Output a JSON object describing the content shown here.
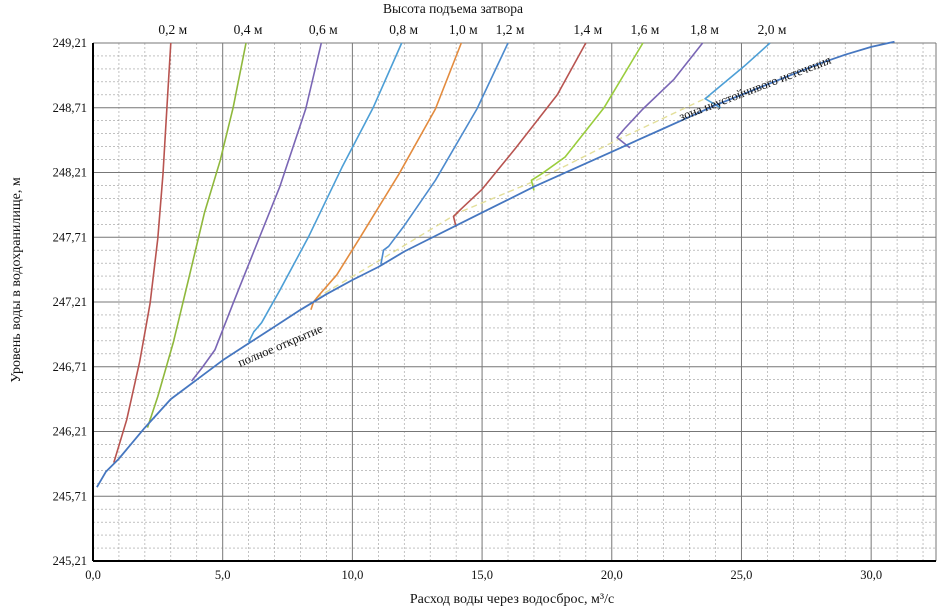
{
  "chart_data": {
    "type": "line",
    "title": "Высота подъема затвора",
    "xlabel": "Расход воды через водосброс, м³/с",
    "ylabel": "Уровень воды в водохранилище, м",
    "xlim": [
      0,
      32.5
    ],
    "ylim": [
      245.21,
      249.21
    ],
    "x_ticks": [
      0,
      5,
      10,
      15,
      20,
      25,
      30
    ],
    "x_tick_labels": [
      "0,0",
      "5,0",
      "10,0",
      "15,0",
      "20,0",
      "25,0",
      "30,0"
    ],
    "y_ticks": [
      245.21,
      245.71,
      246.21,
      246.71,
      247.21,
      247.71,
      248.21,
      248.71,
      249.21
    ],
    "y_tick_labels": [
      "245,21",
      "245,71",
      "246,21",
      "246,71",
      "247,21",
      "247,71",
      "248,21",
      "248,71",
      "249,21"
    ],
    "grid_major": true,
    "grid_minor": true,
    "annotations": {
      "full_open": "полное открытие",
      "unstable": "зона неустойчивого истечения"
    },
    "full_open_curve": {
      "name": "полное открытие",
      "color": "#4677c0",
      "points": [
        [
          0.15,
          245.78
        ],
        [
          0.5,
          245.9
        ],
        [
          1.0,
          246.0
        ],
        [
          2.0,
          246.24
        ],
        [
          3.0,
          246.46
        ],
        [
          4.0,
          246.61
        ],
        [
          5.0,
          246.76
        ],
        [
          6.0,
          246.89
        ],
        [
          7.0,
          247.02
        ],
        [
          8.0,
          247.15
        ],
        [
          9.0,
          247.27
        ],
        [
          10.0,
          247.38
        ],
        [
          11.0,
          247.48
        ],
        [
          12.0,
          247.6
        ],
        [
          13.0,
          247.7
        ],
        [
          14.0,
          247.8
        ],
        [
          15.0,
          247.9
        ],
        [
          16.0,
          248.0
        ],
        [
          17.0,
          248.1
        ],
        [
          18.0,
          248.19
        ],
        [
          19.0,
          248.28
        ],
        [
          20.0,
          248.37
        ],
        [
          21.0,
          248.46
        ],
        [
          22.0,
          248.55
        ],
        [
          23.0,
          248.64
        ],
        [
          24.0,
          248.73
        ],
        [
          25.0,
          248.81
        ],
        [
          26.0,
          248.89
        ],
        [
          27.0,
          248.97
        ],
        [
          28.0,
          249.05
        ],
        [
          29.0,
          249.12
        ],
        [
          30.0,
          249.18
        ],
        [
          30.9,
          249.22
        ]
      ]
    },
    "series": [
      {
        "name": "0,2 м",
        "label": "0,2 м",
        "color": "#b85450",
        "points": [
          [
            0.8,
            245.97
          ],
          [
            1.3,
            246.3
          ],
          [
            1.8,
            246.75
          ],
          [
            2.2,
            247.2
          ],
          [
            2.5,
            247.7
          ],
          [
            2.7,
            248.2
          ],
          [
            2.85,
            248.71
          ],
          [
            3.0,
            249.21
          ]
        ]
      },
      {
        "name": "0,4 м",
        "label": "0,4 м",
        "color": "#8fb83c",
        "points": [
          [
            2.1,
            246.24
          ],
          [
            2.5,
            246.48
          ],
          [
            3.1,
            246.9
          ],
          [
            3.7,
            247.4
          ],
          [
            4.3,
            247.9
          ],
          [
            4.9,
            248.3
          ],
          [
            5.4,
            248.71
          ],
          [
            5.9,
            249.21
          ]
        ]
      },
      {
        "name": "0,6 м",
        "label": "0,6 м",
        "color": "#7a66b5",
        "points": [
          [
            3.8,
            246.6
          ],
          [
            4.2,
            246.7
          ],
          [
            4.7,
            246.84
          ],
          [
            5.4,
            247.2
          ],
          [
            6.3,
            247.65
          ],
          [
            7.2,
            248.1
          ],
          [
            8.2,
            248.7
          ],
          [
            8.8,
            249.21
          ]
        ]
      },
      {
        "name": "0,8 м",
        "label": "0,8 м",
        "color": "#4d9fd6",
        "points": [
          [
            6.0,
            246.9
          ],
          [
            6.2,
            246.98
          ],
          [
            6.5,
            247.05
          ],
          [
            7.2,
            247.3
          ],
          [
            8.3,
            247.71
          ],
          [
            9.6,
            248.25
          ],
          [
            10.8,
            248.71
          ],
          [
            11.9,
            249.21
          ]
        ]
      },
      {
        "name": "1,0 м",
        "label": "1,0 м",
        "color": "#e38b3e",
        "points": [
          [
            8.4,
            247.15
          ],
          [
            8.5,
            247.21
          ],
          [
            8.7,
            247.26
          ],
          [
            9.4,
            247.42
          ],
          [
            10.3,
            247.71
          ],
          [
            11.8,
            248.2
          ],
          [
            13.2,
            248.7
          ],
          [
            14.2,
            249.21
          ]
        ]
      },
      {
        "name": "1,2 м",
        "label": "1,2 м",
        "color": "#4d8bce",
        "points": [
          [
            11.1,
            247.5
          ],
          [
            11.2,
            247.61
          ],
          [
            11.4,
            247.64
          ],
          [
            12.0,
            247.8
          ],
          [
            13.2,
            248.15
          ],
          [
            14.8,
            248.7
          ],
          [
            16.0,
            249.21
          ]
        ]
      },
      {
        "name": "1,4 м",
        "label": "1,4 м",
        "color": "#b85450",
        "points": [
          [
            14.0,
            247.79
          ],
          [
            13.9,
            247.87
          ],
          [
            14.2,
            247.93
          ],
          [
            15.0,
            248.08
          ],
          [
            16.3,
            248.4
          ],
          [
            17.9,
            248.81
          ],
          [
            19.0,
            249.21
          ]
        ]
      },
      {
        "name": "1,6 м",
        "label": "1,6 м",
        "color": "#9acd3c",
        "points": [
          [
            17.0,
            248.07
          ],
          [
            16.9,
            248.15
          ],
          [
            17.3,
            248.2
          ],
          [
            18.2,
            248.33
          ],
          [
            19.7,
            248.71
          ],
          [
            21.2,
            249.21
          ]
        ]
      },
      {
        "name": "1,8 м",
        "label": "1,8 м",
        "color": "#7a66b5",
        "points": [
          [
            20.7,
            248.4
          ],
          [
            20.2,
            248.48
          ],
          [
            20.5,
            248.55
          ],
          [
            21.2,
            248.7
          ],
          [
            22.4,
            248.93
          ],
          [
            23.5,
            249.21
          ]
        ]
      },
      {
        "name": "2,0 м",
        "label": "2,0 м",
        "color": "#4d9fd6",
        "points": [
          [
            24.2,
            248.71
          ],
          [
            23.6,
            248.78
          ],
          [
            24.2,
            248.88
          ],
          [
            25.1,
            249.03
          ],
          [
            26.1,
            249.21
          ]
        ]
      }
    ],
    "unstable_boundary": {
      "name": "зона неустойчивого истечения",
      "color": "#e3df9a",
      "points": [
        [
          8.6,
          247.24
        ],
        [
          11.2,
          247.55
        ],
        [
          14.1,
          247.9
        ],
        [
          17.1,
          248.15
        ],
        [
          20.3,
          248.47
        ],
        [
          23.8,
          248.8
        ]
      ]
    }
  }
}
